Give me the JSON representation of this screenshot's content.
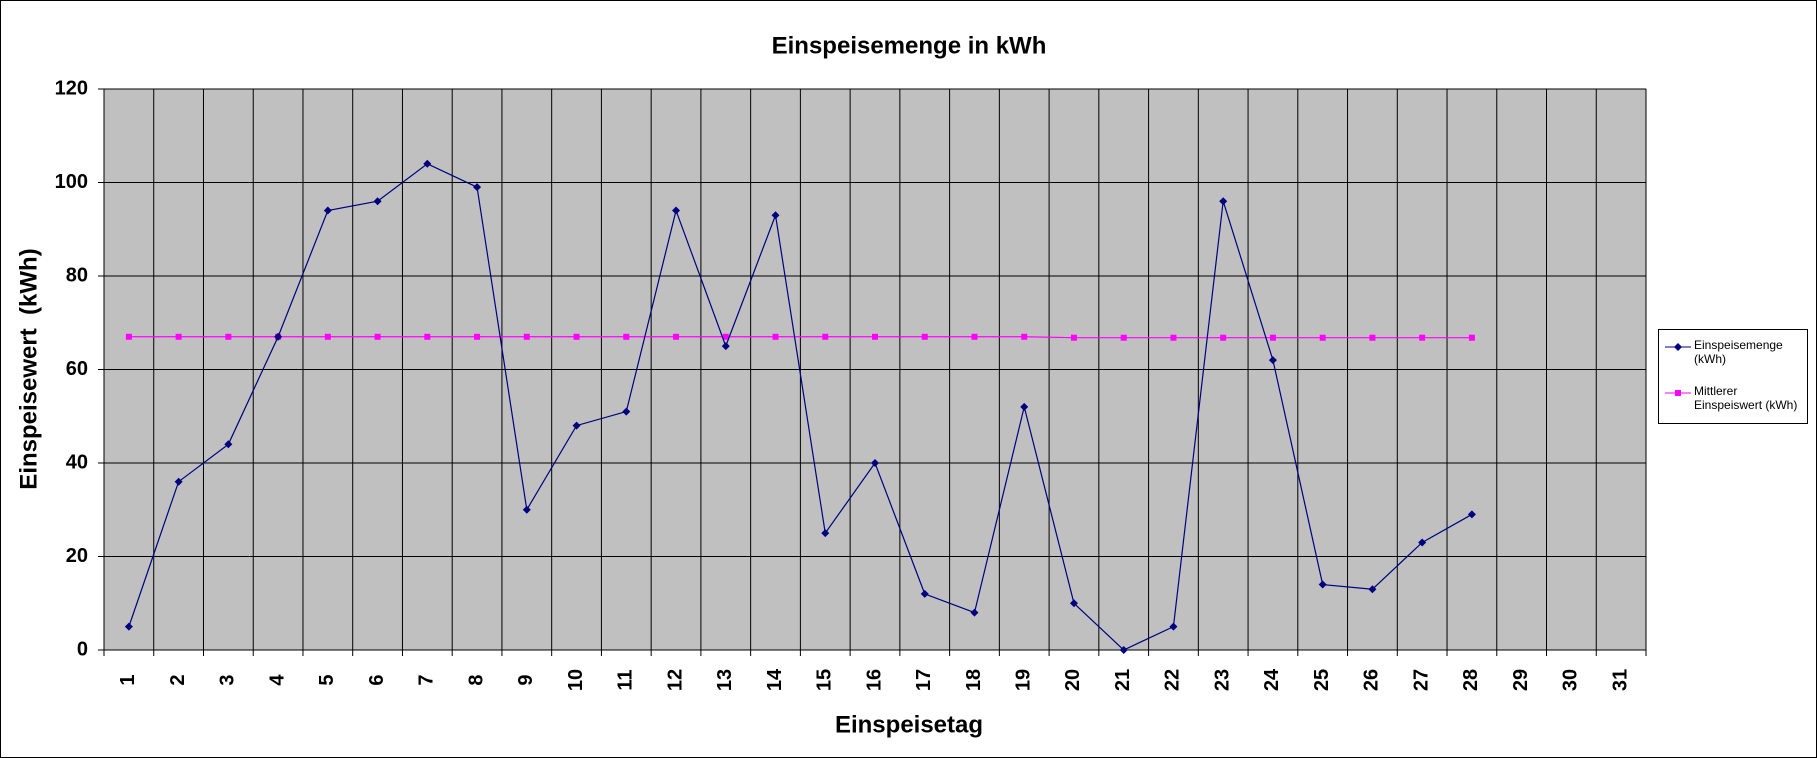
{
  "chart_data": {
    "type": "line",
    "title": "Einspeisemenge in kWh",
    "x_label": "Einspeisetag",
    "y_label": "Einspeisewert  (kWh)",
    "categories": [
      "1",
      "2",
      "3",
      "4",
      "5",
      "6",
      "7",
      "8",
      "9",
      "10",
      "11",
      "12",
      "13",
      "14",
      "15",
      "16",
      "17",
      "18",
      "19",
      "20",
      "21",
      "22",
      "23",
      "24",
      "25",
      "26",
      "27",
      "28",
      "29",
      "30",
      "31"
    ],
    "series": [
      {
        "name": "Einspeisemenge (kWh)",
        "color": "#000080",
        "marker": "diamond",
        "values": [
          5,
          36,
          44,
          67,
          94,
          96,
          104,
          99,
          30,
          48,
          51,
          94,
          65,
          93,
          25,
          40,
          12,
          8,
          52,
          10,
          0,
          5,
          96,
          62,
          14,
          13,
          23,
          29,
          null,
          null,
          null
        ]
      },
      {
        "name": "Mittlerer Einspeiswert (kWh)",
        "color": "#ff00ff",
        "marker": "square",
        "values": [
          67,
          67,
          67,
          67,
          67,
          67,
          67,
          67,
          67,
          67,
          67,
          67,
          67,
          67,
          67,
          67,
          67,
          67,
          67,
          66.8,
          66.8,
          66.8,
          66.8,
          66.8,
          66.8,
          66.8,
          66.8,
          66.8,
          null,
          null,
          null
        ]
      }
    ],
    "ylim": [
      0,
      120
    ],
    "yticks": [
      0,
      20,
      40,
      60,
      80,
      100,
      120
    ],
    "grid": true,
    "legend": "right",
    "plot_background": "#c0c0c0"
  }
}
